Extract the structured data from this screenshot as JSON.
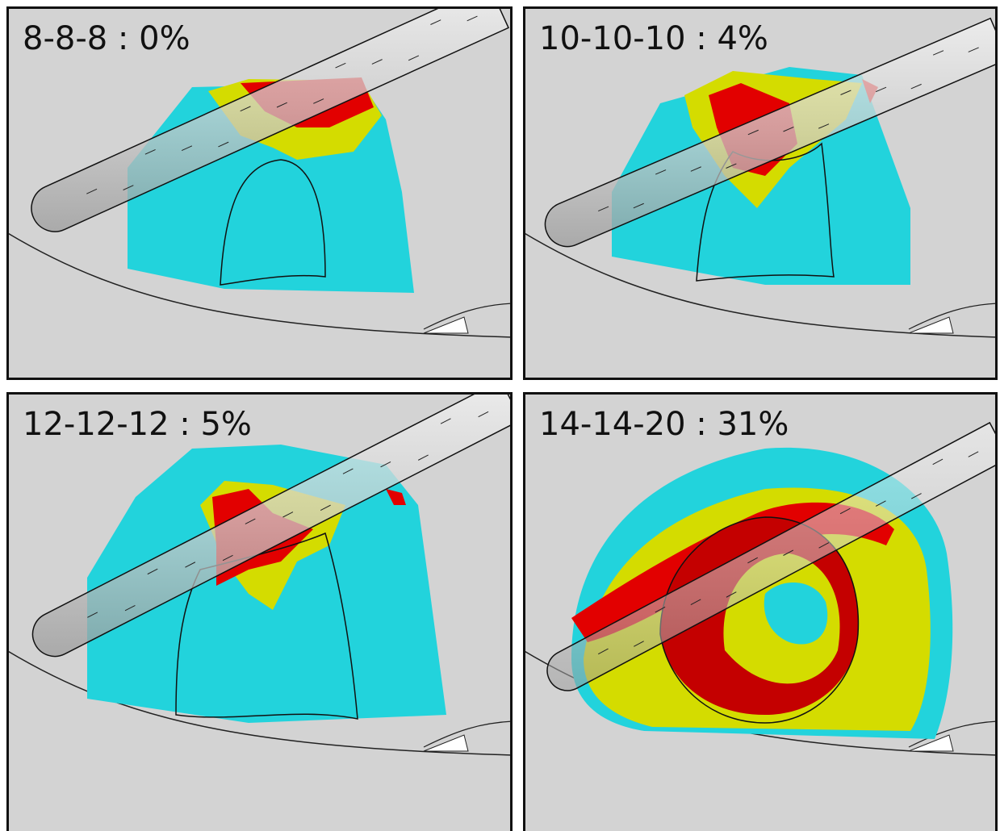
{
  "panels": [
    {
      "label": "8-8-8 : 0%"
    },
    {
      "label": "10-10-10 : 4%"
    },
    {
      "label": "12-12-12 : 5%"
    },
    {
      "label": "14-14-20 : 31%"
    }
  ]
}
